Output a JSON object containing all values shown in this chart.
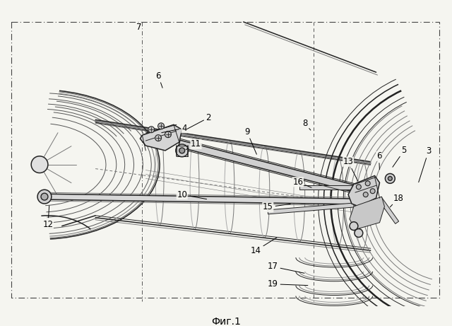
{
  "caption": "Фиг.1",
  "caption_fontsize": 10,
  "fig_width": 6.4,
  "fig_height": 4.61,
  "dpi": 100,
  "bg_color": "#f5f5f0",
  "dc": "#222222",
  "mg": "#777777",
  "lg": "#bbbbbb",
  "gray_fill": "#d8d8d8",
  "white": "#ffffff"
}
